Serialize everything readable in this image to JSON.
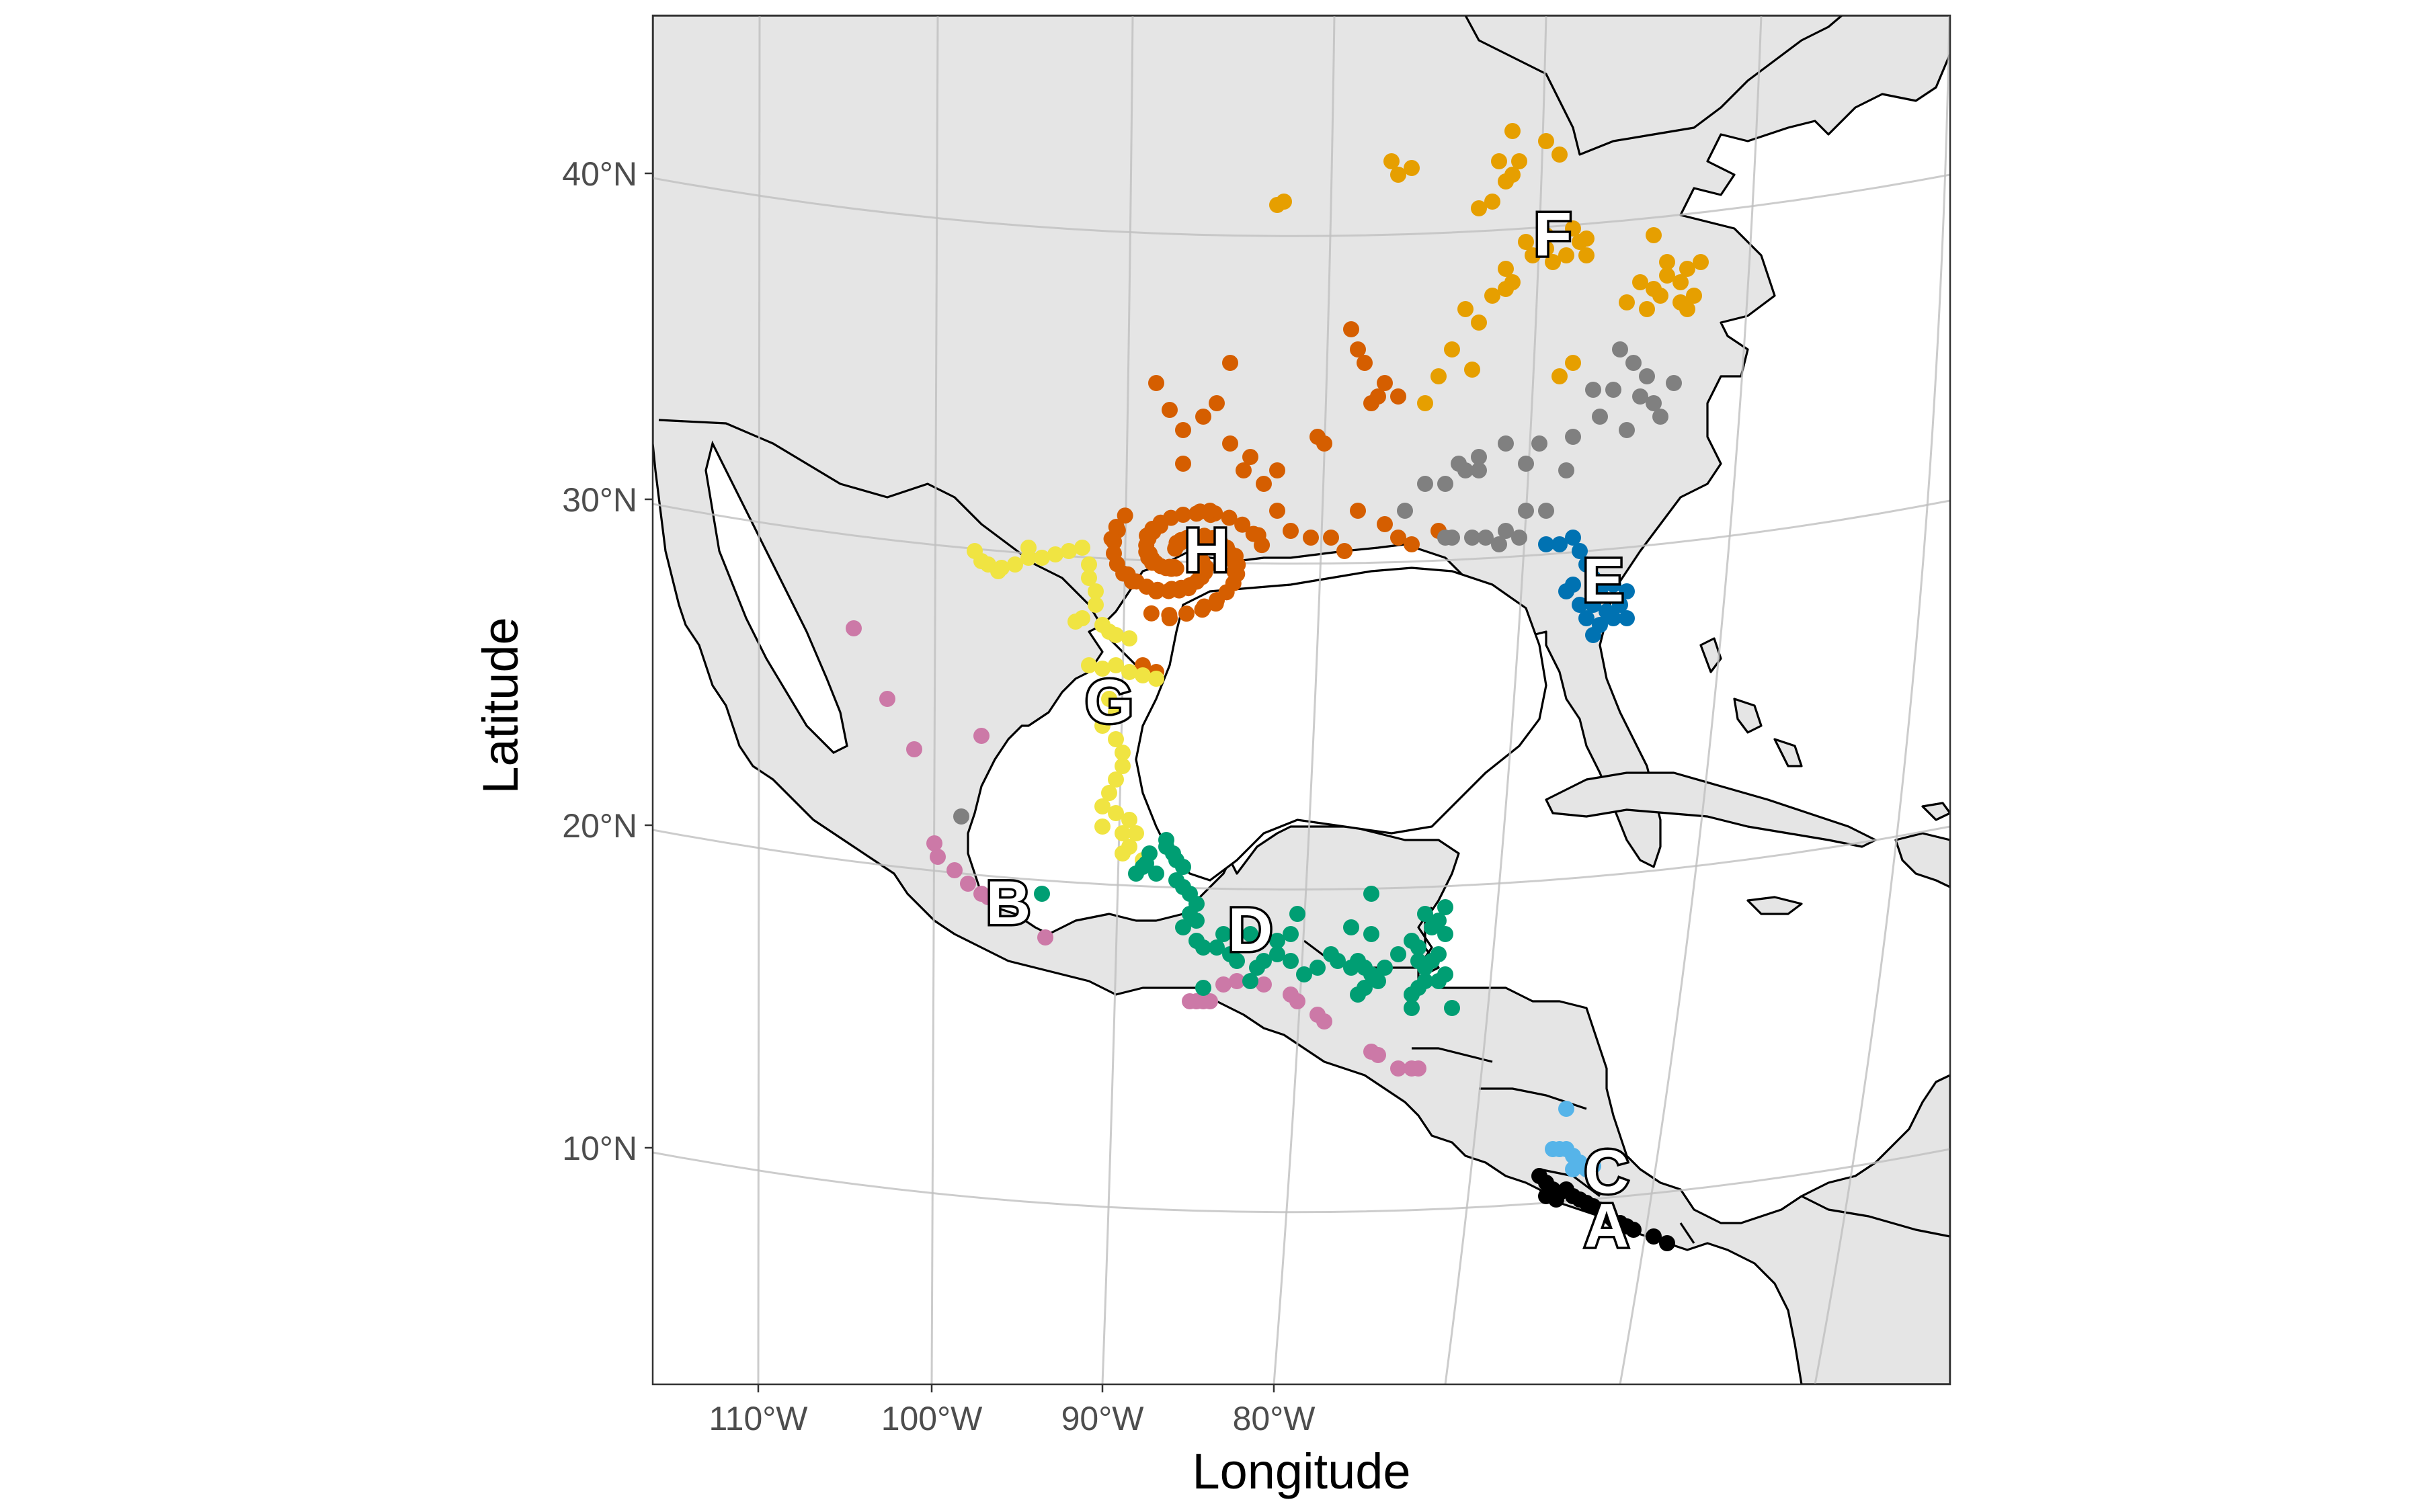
{
  "axes": {
    "x_title": "Longitude",
    "y_title": "Latitude",
    "x_ticks": [
      "110°W",
      "100°W",
      "90°W",
      "80°W"
    ],
    "y_ticks": [
      "40°N",
      "30°N",
      "20°N",
      "10°N"
    ]
  },
  "colors": {
    "land": "#e5e5e5",
    "ocean": "#ffffff",
    "graticule": "#bfbfbf",
    "A": "#000000",
    "B": "#CC79A7",
    "C": "#56B4E9",
    "D": "#009E73",
    "E": "#0072B2",
    "F": "#E69F00",
    "G": "#F0E442",
    "H": "#D55E00",
    "gray": "#808080"
  },
  "clusters": [
    {
      "label": "A",
      "color_key": "A"
    },
    {
      "label": "B",
      "color_key": "B"
    },
    {
      "label": "C",
      "color_key": "C"
    },
    {
      "label": "D",
      "color_key": "D"
    },
    {
      "label": "E",
      "color_key": "E"
    },
    {
      "label": "F",
      "color_key": "F"
    },
    {
      "label": "G",
      "color_key": "G"
    },
    {
      "label": "H",
      "color_key": "H"
    }
  ]
}
